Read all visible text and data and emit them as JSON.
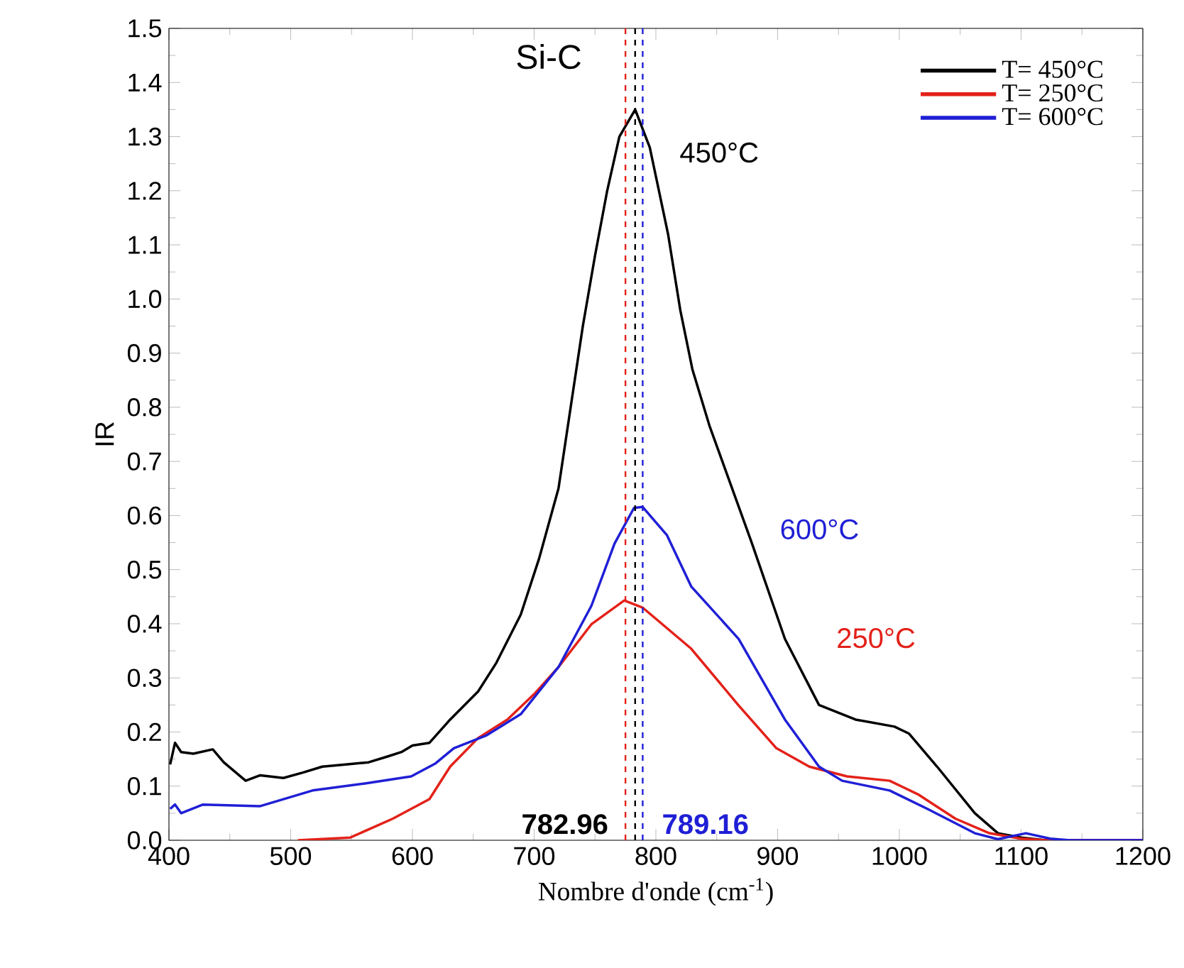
{
  "chart_data": {
    "type": "line",
    "title": "Si-C",
    "xlabel": "Nombre d'onde (cm$^{-1}$)",
    "ylabel": "IR",
    "xlim": [
      400,
      1200
    ],
    "xticks": [
      400,
      500,
      600,
      700,
      800,
      900,
      1000,
      1100,
      1200
    ],
    "ylim": [
      0,
      1.5
    ],
    "yticks": [
      {
        "value": 0,
        "label": "0.0"
      },
      0.1,
      0.2,
      0.3,
      0.4,
      0.5,
      0.6,
      0.7,
      0.8,
      0.9,
      {
        "value": 1,
        "label": "1.0"
      },
      1.1,
      1.2,
      1.3,
      1.4,
      1.5
    ],
    "legend": "top right",
    "line_style": "solid",
    "marker": "none",
    "series": [
      {
        "name": "T= 450°C",
        "color": "#000000",
        "x": [
          401,
          405,
          410,
          420,
          436,
          445,
          463,
          475,
          494,
          510,
          526,
          545,
          564,
          580,
          591,
          600,
          614,
          631,
          654,
          669,
          689,
          704,
          720,
          730,
          740,
          750,
          760,
          770,
          783,
          795,
          810,
          820,
          830,
          844,
          879,
          906,
          934,
          964,
          996,
          1008,
          1031,
          1062,
          1081,
          1100,
          1120,
          1200
        ],
        "values": [
          0.14,
          0.18,
          0.163,
          0.16,
          0.168,
          0.144,
          0.11,
          0.12,
          0.115,
          0.125,
          0.136,
          0.14,
          0.144,
          0.155,
          0.163,
          0.175,
          0.18,
          0.223,
          0.275,
          0.328,
          0.417,
          0.52,
          0.65,
          0.8,
          0.95,
          1.08,
          1.2,
          1.3,
          1.35,
          1.28,
          1.12,
          0.98,
          0.87,
          0.766,
          0.548,
          0.372,
          0.25,
          0.223,
          0.21,
          0.197,
          0.136,
          0.05,
          0.013,
          0.005,
          0,
          0
        ]
      },
      {
        "name": "T= 250°C",
        "color": "#e32119",
        "x": [
          506,
          549,
          584,
          614,
          631,
          654,
          678,
          700,
          720,
          747,
          774,
          789,
          829,
          868,
          899,
          926,
          957,
          992,
          1016,
          1046,
          1074,
          1100,
          1120,
          1200
        ],
        "values": [
          0,
          0.005,
          0.04,
          0.076,
          0.136,
          0.189,
          0.223,
          0.27,
          0.32,
          0.399,
          0.443,
          0.43,
          0.354,
          0.249,
          0.17,
          0.136,
          0.118,
          0.11,
          0.084,
          0.04,
          0.013,
          0.003,
          0,
          0
        ]
      },
      {
        "name": "T= 600°C",
        "color": "#1f1fd6",
        "x": [
          401,
          405,
          410,
          428,
          475,
          518,
          561,
          599,
          619,
          634,
          661,
          689,
          720,
          747,
          766,
          782,
          789,
          809,
          829,
          868,
          906,
          934,
          953,
          992,
          1023,
          1062,
          1081,
          1104,
          1124,
          1140,
          1200
        ],
        "values": [
          0.058,
          0.066,
          0.05,
          0.066,
          0.063,
          0.092,
          0.105,
          0.118,
          0.142,
          0.17,
          0.194,
          0.233,
          0.32,
          0.433,
          0.548,
          0.614,
          0.616,
          0.564,
          0.469,
          0.372,
          0.223,
          0.136,
          0.11,
          0.092,
          0.058,
          0.013,
          0.002,
          0.013,
          0.003,
          0,
          0
        ]
      }
    ],
    "ref_lines": [
      {
        "axis": "x",
        "value": 782.96,
        "label": "782.96",
        "color": "#000000",
        "line_style": "dashed"
      },
      {
        "axis": "x",
        "value": 775,
        "label": null,
        "color": "#e32119",
        "line_style": "dashed"
      },
      {
        "axis": "x",
        "value": 789.16,
        "label": "789.16",
        "color": "#1f1fd6",
        "line_style": "dashed"
      }
    ],
    "annotations": [
      "450°C",
      "600°C",
      "250°C"
    ]
  }
}
